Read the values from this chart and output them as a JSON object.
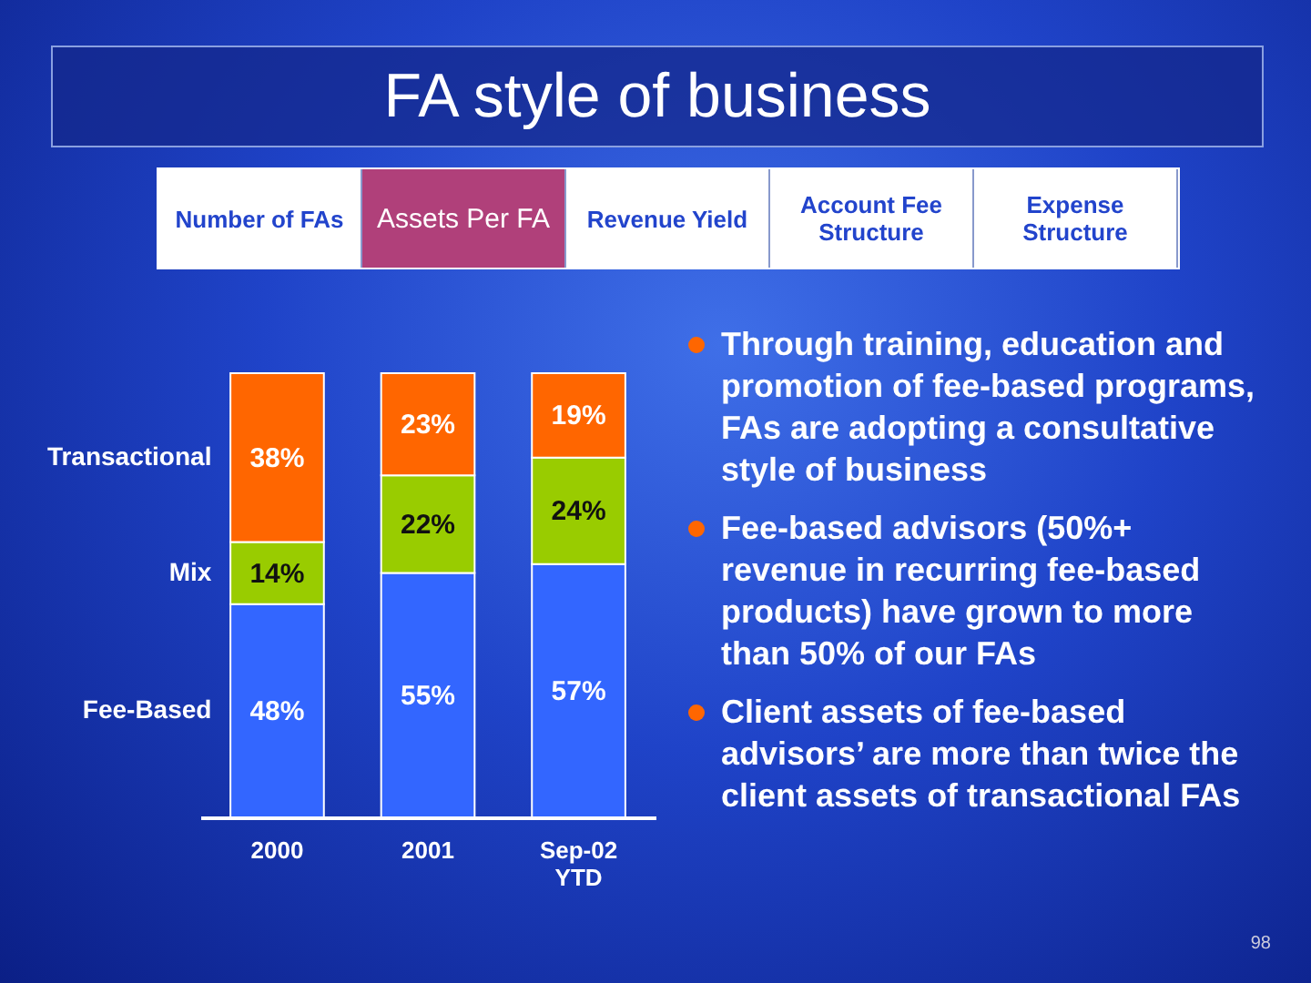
{
  "chart_data": {
    "type": "bar",
    "stacked": true,
    "title": "FA style of business",
    "categories": [
      "2000",
      "2001",
      "Sep-02 YTD"
    ],
    "series": [
      {
        "name": "Fee-Based",
        "color": "#3366ff",
        "values": [
          48,
          55,
          57
        ],
        "value_labels": [
          "48%",
          "55%",
          "57%"
        ]
      },
      {
        "name": "Mix",
        "color": "#99cc00",
        "values": [
          14,
          22,
          24
        ],
        "value_labels": [
          "14%",
          "22%",
          "24%"
        ]
      },
      {
        "name": "Transactional",
        "color": "#ff6600",
        "values": [
          38,
          23,
          19
        ],
        "value_labels": [
          "38%",
          "23%",
          "19%"
        ]
      }
    ],
    "legend": "left",
    "annotations": [
      "Number of FAs",
      "Assets Per FA",
      "Revenue Yield",
      "Account Fee Structure",
      "Expense Structure",
      "Through training, education and promotion of fee-based programs, FAs are adopting a consultative style of business",
      "Fee-based advisors (50%+ revenue in recurring fee-based products) have grown to more than 50% of our FAs",
      "Client assets of fee-based advisors’ are more than twice the client assets of transactional FAs",
      "98"
    ]
  }
}
